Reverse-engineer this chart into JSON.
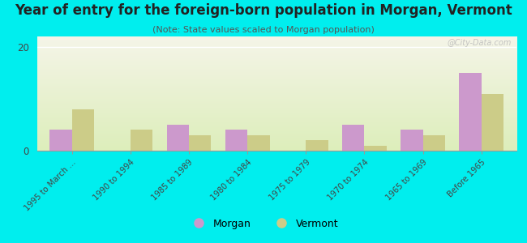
{
  "title": "Year of entry for the foreign-born population in Morgan, Vermont",
  "subtitle": "(Note: State values scaled to Morgan population)",
  "categories": [
    "1995 to March ...",
    "1990 to 1994",
    "1985 to 1989",
    "1980 to 1984",
    "1975 to 1979",
    "1970 to 1974",
    "1965 to 1969",
    "Before 1965"
  ],
  "morgan_values": [
    4,
    0,
    5,
    4,
    0,
    5,
    4,
    15
  ],
  "vermont_values": [
    8,
    4,
    3,
    3,
    2,
    1,
    3,
    11
  ],
  "morgan_color": "#cc99cc",
  "vermont_color": "#cccc88",
  "background_color": "#00eeee",
  "plot_bg_top": "#ddeebb",
  "plot_bg_bottom": "#f5f5e8",
  "ylim": [
    0,
    22
  ],
  "yticks": [
    0,
    20
  ],
  "bar_width": 0.38,
  "watermark": "@City-Data.com",
  "legend_labels": [
    "Morgan",
    "Vermont"
  ],
  "title_fontsize": 12,
  "subtitle_fontsize": 8
}
